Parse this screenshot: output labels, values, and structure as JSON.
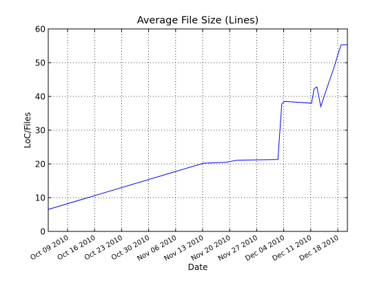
{
  "chart_data": {
    "type": "line",
    "title": "Average File Size (Lines)",
    "xlabel": "Date",
    "ylabel": "LoC/Files",
    "xlim": [
      "2010-10-04",
      "2010-12-20.5"
    ],
    "ylim": [
      0,
      60
    ],
    "grid": true,
    "x_tick_labels": [
      "Oct 09 2010",
      "Oct 16 2010",
      "Oct 23 2010",
      "Oct 30 2010",
      "Nov 06 2010",
      "Nov 13 2010",
      "Nov 20 2010",
      "Nov 27 2010",
      "Dec 04 2010",
      "Dec 11 2010",
      "Dec 18 2010"
    ],
    "x_tick_dates": [
      "2010-10-09",
      "2010-10-16",
      "2010-10-23",
      "2010-10-30",
      "2010-11-06",
      "2010-11-13",
      "2010-11-20",
      "2010-11-27",
      "2010-12-04",
      "2010-12-11",
      "2010-12-18"
    ],
    "y_ticks": [
      0,
      10,
      20,
      30,
      40,
      50,
      60
    ],
    "series": [
      {
        "name": "Average File Size",
        "color": "#0000ff",
        "x": [
          "2010-10-04",
          "2010-11-13.2",
          "2010-11-19",
          "2010-11-22",
          "2010-12-02.5",
          "2010-12-03.5",
          "2010-12-04.2",
          "2010-12-11.2",
          "2010-12-11.9",
          "2010-12-12.6",
          "2010-12-13.6",
          "2010-12-14.6",
          "2010-12-15.8",
          "2010-12-17.1",
          "2010-12-18.2",
          "2010-12-18.9",
          "2010-12-20.5"
        ],
        "values": [
          6.5,
          20.2,
          20.5,
          21.1,
          21.3,
          37.8,
          38.5,
          38.0,
          42.3,
          42.8,
          37.0,
          40.5,
          44.5,
          48.8,
          53.0,
          55.3,
          55.3
        ]
      }
    ]
  }
}
